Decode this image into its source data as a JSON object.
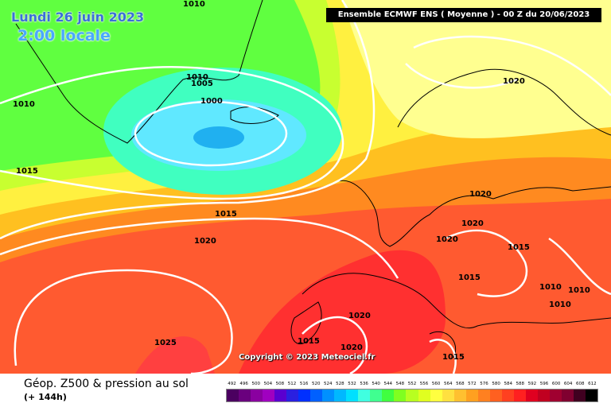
{
  "overlay": {
    "date": "Lundi 26 juin 2023",
    "local_time": "2:00 locale"
  },
  "header": {
    "model_run": "Ensemble ECMWF ENS  ( Moyenne )  -  00 Z du 20/06/2023"
  },
  "copyright": "Copyright © 2023 Meteociel.fr",
  "footer": {
    "field": "Géop. Z500 & pression au sol",
    "forecast_step": "(+ 144h)"
  },
  "legend": {
    "ticks": [
      "492",
      "496",
      "500",
      "504",
      "508",
      "512",
      "516",
      "520",
      "524",
      "528",
      "532",
      "536",
      "540",
      "544",
      "548",
      "552",
      "556",
      "560",
      "564",
      "568",
      "572",
      "576",
      "580",
      "584",
      "588",
      "592",
      "596",
      "600",
      "604",
      "608",
      "612"
    ],
    "colors": [
      "#4b0060",
      "#6a007e",
      "#8a00a0",
      "#a000c0",
      "#5a00d0",
      "#2a20e0",
      "#0030ff",
      "#0060ff",
      "#0090ff",
      "#00b8ff",
      "#00e0ff",
      "#40ffe0",
      "#40ff90",
      "#40ff40",
      "#80ff20",
      "#b8ff20",
      "#e0ff20",
      "#ffff40",
      "#ffe040",
      "#ffc030",
      "#ffa020",
      "#ff8020",
      "#ff6020",
      "#ff4020",
      "#ff2020",
      "#e00020",
      "#c00020",
      "#a00030",
      "#800030",
      "#400020",
      "#000000"
    ]
  },
  "isobars": [
    "1010",
    "1010",
    "1005",
    "1000",
    "1010",
    "1015",
    "1015",
    "1020",
    "1020",
    "1020",
    "1020",
    "1020",
    "1015",
    "1015",
    "1010",
    "1010",
    "1010",
    "1020",
    "1015",
    "1020",
    "1025",
    "1015"
  ]
}
